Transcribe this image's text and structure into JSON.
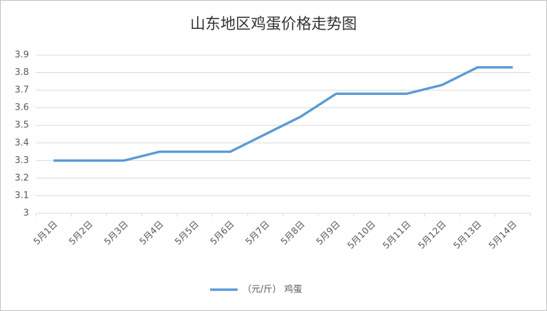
{
  "chart_data": {
    "type": "line",
    "title": "山东地区鸡蛋价格走势图",
    "categories": [
      "5月1日",
      "5月2日",
      "5月3日",
      "5月4日",
      "5月5日",
      "5月6日",
      "5月7日",
      "5月8日",
      "5月9日",
      "5月10日",
      "5月11日",
      "5月12日",
      "5月13日",
      "5月14日"
    ],
    "series": [
      {
        "name": "（元/斤） 鸡蛋",
        "color": "#5b9bd5",
        "values": [
          3.3,
          3.3,
          3.3,
          3.35,
          3.35,
          3.35,
          3.45,
          3.55,
          3.68,
          3.68,
          3.68,
          3.73,
          3.83,
          3.83
        ]
      }
    ],
    "ylim": [
      3,
      3.9
    ],
    "yticks": [
      3,
      3.1,
      3.2,
      3.3,
      3.4,
      3.5,
      3.6,
      3.7,
      3.8,
      3.9
    ],
    "grid": true,
    "legend": "bottom"
  }
}
